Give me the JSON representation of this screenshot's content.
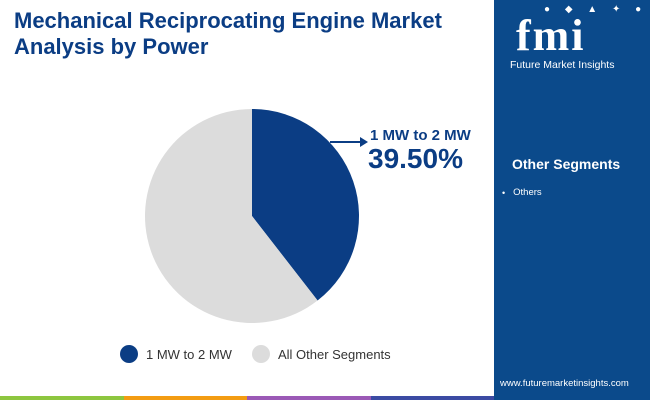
{
  "title": "Mechanical Reciprocating Engine Market Analysis by Power",
  "logo": {
    "mark": "fmi",
    "icons": "● ◆ ▲ ✦ ●",
    "text": "Future Market Insights"
  },
  "sidebar": {
    "other_title": "Other Segments",
    "items": [
      "Others"
    ]
  },
  "website": "www.futuremarketinsights.com",
  "colors": {
    "primary": "#0b3d84",
    "secondary": "#dcdcdc",
    "sidebar": "#0b4a8b",
    "bar": [
      "#8dc63f",
      "#f39c12",
      "#9b59b6",
      "#3b4ba3"
    ]
  },
  "chart_data": {
    "type": "pie",
    "title": "Mechanical Reciprocating Engine Market Analysis by Power",
    "labels": [
      "1 MW to 2 MW",
      "All Other Segments"
    ],
    "values": [
      39.5,
      60.5
    ],
    "annotation": {
      "label": "1 MW to 2 MW",
      "value": "39.50%"
    },
    "legend_position": "bottom"
  }
}
